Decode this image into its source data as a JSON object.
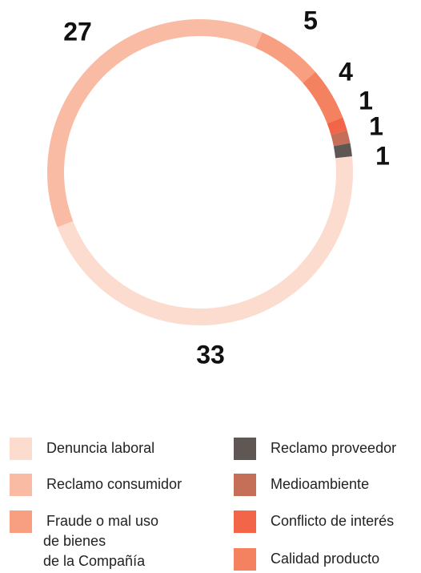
{
  "chart_data": {
    "type": "donut",
    "categories": [
      "Denuncia laboral",
      "Reclamo consumidor",
      "Fraude o mal uso de bienes de la Compañía",
      "Calidad producto",
      "Conflicto de interés",
      "Medioambiente",
      "Reclamo proveedor"
    ],
    "values": [
      33,
      27,
      5,
      4,
      1,
      1,
      1
    ],
    "colors": [
      "#fbdccf",
      "#f9bba4",
      "#f79f80",
      "#f4815f",
      "#f26548",
      "#c56e58",
      "#5f5753"
    ]
  }
}
